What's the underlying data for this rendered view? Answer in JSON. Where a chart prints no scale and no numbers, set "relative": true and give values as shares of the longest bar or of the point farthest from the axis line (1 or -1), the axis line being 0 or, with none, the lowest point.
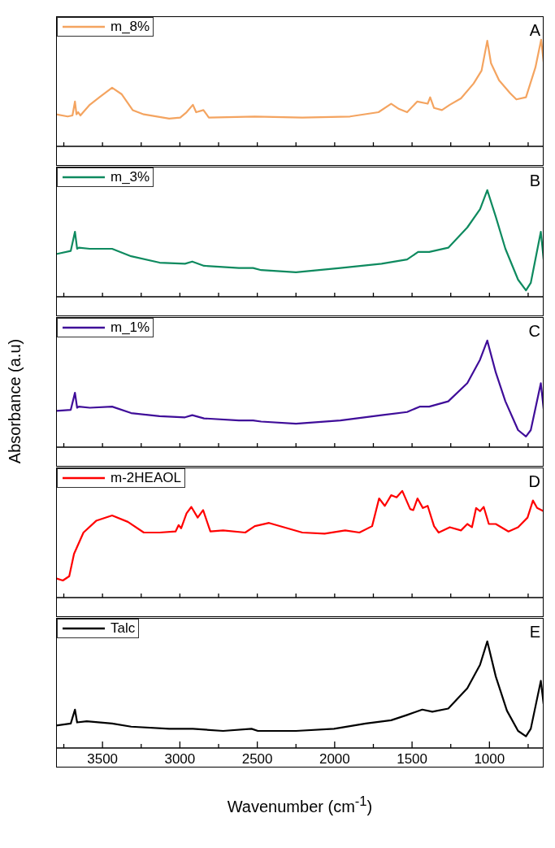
{
  "chart_data": [
    {
      "type": "line",
      "relative": true,
      "xlim": [
        3800,
        650
      ],
      "xticks": [
        {
          "value": 3750,
          "label": null
        },
        {
          "value": 3500,
          "label": null
        },
        {
          "value": 3250,
          "label": null
        },
        {
          "value": 3000,
          "label": null
        },
        {
          "value": 2750,
          "label": null
        },
        {
          "value": 2500,
          "label": null
        },
        {
          "value": 2250,
          "label": null
        },
        {
          "value": 2000,
          "label": null
        },
        {
          "value": 1750,
          "label": null
        },
        {
          "value": 1500,
          "label": null
        },
        {
          "value": 1250,
          "label": null
        },
        {
          "value": 1000,
          "label": null
        },
        {
          "value": 750,
          "label": null
        }
      ],
      "tick_labels": false,
      "legend": "top left",
      "annotations": [
        "A"
      ],
      "series": [
        {
          "name": "m_8%",
          "color": "#f4a460",
          "x": [
            3800,
            3725,
            3694,
            3678,
            3668,
            3657,
            3643,
            3582,
            3520,
            3438,
            3377,
            3305,
            3233,
            3069,
            2998,
            2957,
            2916,
            2895,
            2848,
            2813,
            2516,
            2209,
            1901,
            1717,
            1635,
            1584,
            1532,
            1467,
            1399,
            1383,
            1358,
            1307,
            1256,
            1184,
            1102,
            1051,
            1014,
            990,
            938,
            867,
            826,
            764,
            703,
            666,
            650
          ],
          "values": [
            0.3,
            0.28,
            0.29,
            0.42,
            0.3,
            0.32,
            0.29,
            0.39,
            0.46,
            0.55,
            0.49,
            0.34,
            0.3,
            0.26,
            0.27,
            0.32,
            0.39,
            0.32,
            0.34,
            0.27,
            0.28,
            0.27,
            0.28,
            0.32,
            0.4,
            0.35,
            0.32,
            0.42,
            0.4,
            0.46,
            0.36,
            0.34,
            0.39,
            0.45,
            0.59,
            0.71,
            0.99,
            0.78,
            0.62,
            0.5,
            0.44,
            0.46,
            0.74,
            1,
            0.79
          ]
        }
      ]
    },
    {
      "type": "line",
      "relative": true,
      "xlim": [
        3800,
        650
      ],
      "xticks": [
        {
          "value": 3750,
          "label": null
        },
        {
          "value": 3500,
          "label": null
        },
        {
          "value": 3250,
          "label": null
        },
        {
          "value": 3000,
          "label": null
        },
        {
          "value": 2750,
          "label": null
        },
        {
          "value": 2500,
          "label": null
        },
        {
          "value": 2250,
          "label": null
        },
        {
          "value": 2000,
          "label": null
        },
        {
          "value": 1750,
          "label": null
        },
        {
          "value": 1500,
          "label": null
        },
        {
          "value": 1250,
          "label": null
        },
        {
          "value": 1000,
          "label": null
        },
        {
          "value": 750,
          "label": null
        }
      ],
      "tick_labels": false,
      "legend": "top left",
      "annotations": [
        "B"
      ],
      "series": [
        {
          "name": "m_3%",
          "color": "#0e8a5f",
          "x": [
            3800,
            3705,
            3678,
            3664,
            3653,
            3582,
            3438,
            3315,
            3131,
            2967,
            2920,
            2844,
            2619,
            2527,
            2475,
            2250,
            1963,
            1697,
            1532,
            1461,
            1389,
            1266,
            1143,
            1061,
            1014,
            959,
            897,
            815,
            764,
            733,
            668,
            650
          ],
          "values": [
            0.4,
            0.43,
            0.61,
            0.45,
            0.46,
            0.45,
            0.45,
            0.38,
            0.32,
            0.31,
            0.33,
            0.29,
            0.27,
            0.27,
            0.25,
            0.23,
            0.27,
            0.31,
            0.35,
            0.42,
            0.42,
            0.46,
            0.65,
            0.82,
            1,
            0.75,
            0.45,
            0.16,
            0.06,
            0.13,
            0.61,
            0.35
          ]
        }
      ]
    },
    {
      "type": "line",
      "relative": true,
      "xlim": [
        3800,
        650
      ],
      "xticks": [
        {
          "value": 3750,
          "label": null
        },
        {
          "value": 3500,
          "label": null
        },
        {
          "value": 3250,
          "label": null
        },
        {
          "value": 3000,
          "label": null
        },
        {
          "value": 2750,
          "label": null
        },
        {
          "value": 2500,
          "label": null
        },
        {
          "value": 2250,
          "label": null
        },
        {
          "value": 2000,
          "label": null
        },
        {
          "value": 1750,
          "label": null
        },
        {
          "value": 1500,
          "label": null
        },
        {
          "value": 1250,
          "label": null
        },
        {
          "value": 1000,
          "label": null
        },
        {
          "value": 750,
          "label": null
        }
      ],
      "tick_labels": false,
      "legend": "top left",
      "annotations": [
        "C"
      ],
      "ylabel": "Absorbance (a.u)",
      "series": [
        {
          "name": "m_1%",
          "color": "#3f0d99",
          "x": [
            3800,
            3705,
            3678,
            3664,
            3653,
            3582,
            3438,
            3315,
            3131,
            2967,
            2920,
            2844,
            2619,
            2527,
            2475,
            2250,
            1963,
            1697,
            1532,
            1451,
            1389,
            1266,
            1143,
            1061,
            1014,
            959,
            897,
            815,
            764,
            733,
            668,
            650
          ],
          "values": [
            0.34,
            0.35,
            0.51,
            0.37,
            0.38,
            0.37,
            0.38,
            0.32,
            0.29,
            0.28,
            0.3,
            0.27,
            0.25,
            0.25,
            0.24,
            0.22,
            0.25,
            0.3,
            0.33,
            0.38,
            0.38,
            0.43,
            0.6,
            0.82,
            1,
            0.7,
            0.43,
            0.16,
            0.1,
            0.16,
            0.6,
            0.36
          ]
        }
      ]
    },
    {
      "type": "line",
      "relative": true,
      "xlim": [
        3800,
        650
      ],
      "xticks": [
        {
          "value": 3750,
          "label": null
        },
        {
          "value": 3500,
          "label": null
        },
        {
          "value": 3250,
          "label": null
        },
        {
          "value": 3000,
          "label": null
        },
        {
          "value": 2750,
          "label": null
        },
        {
          "value": 2500,
          "label": null
        },
        {
          "value": 2250,
          "label": null
        },
        {
          "value": 2000,
          "label": null
        },
        {
          "value": 1750,
          "label": null
        },
        {
          "value": 1500,
          "label": null
        },
        {
          "value": 1250,
          "label": null
        },
        {
          "value": 1000,
          "label": null
        },
        {
          "value": 750,
          "label": null
        }
      ],
      "tick_labels": false,
      "legend": "top left",
      "annotations": [
        "D"
      ],
      "series": [
        {
          "name": "m-2HEAOL",
          "color": "#ff0000",
          "x": [
            3800,
            3756,
            3715,
            3684,
            3623,
            3541,
            3438,
            3336,
            3233,
            3131,
            3028,
            3008,
            2992,
            2957,
            2926,
            2885,
            2850,
            2803,
            2721,
            2578,
            2516,
            2424,
            2209,
            2065,
            1932,
            1840,
            1758,
            1713,
            1676,
            1635,
            1600,
            1563,
            1512,
            1492,
            1465,
            1430,
            1399,
            1358,
            1328,
            1256,
            1184,
            1143,
            1113,
            1086,
            1061,
            1037,
            1004,
            959,
            877,
            815,
            754,
            719,
            692,
            650
          ],
          "values": [
            0.18,
            0.16,
            0.2,
            0.41,
            0.61,
            0.72,
            0.77,
            0.71,
            0.61,
            0.61,
            0.62,
            0.68,
            0.65,
            0.79,
            0.85,
            0.75,
            0.82,
            0.62,
            0.63,
            0.61,
            0.67,
            0.7,
            0.61,
            0.6,
            0.63,
            0.61,
            0.67,
            0.93,
            0.86,
            0.96,
            0.94,
            1,
            0.83,
            0.82,
            0.93,
            0.84,
            0.86,
            0.67,
            0.61,
            0.66,
            0.63,
            0.69,
            0.66,
            0.84,
            0.81,
            0.85,
            0.69,
            0.69,
            0.62,
            0.66,
            0.75,
            0.91,
            0.84,
            0.81
          ]
        }
      ]
    },
    {
      "type": "line",
      "relative": true,
      "xlim": [
        3800,
        650
      ],
      "xticks": [
        {
          "value": 3750,
          "label": null
        },
        3500,
        {
          "value": 3250,
          "label": null
        },
        3000,
        {
          "value": 2750,
          "label": null
        },
        2500,
        {
          "value": 2250,
          "label": null
        },
        2000,
        {
          "value": 1750,
          "label": null
        },
        1500,
        {
          "value": 1250,
          "label": null
        },
        1000,
        {
          "value": 750,
          "label": null
        }
      ],
      "tick_labels": "x",
      "legend": "top left",
      "annotations": [
        "E"
      ],
      "xlabel": "Wavenumber (cm$^{-1}$)",
      "series": [
        {
          "name": "Talc",
          "color": "#000000",
          "x": [
            3800,
            3705,
            3678,
            3664,
            3602,
            3438,
            3315,
            3069,
            2916,
            2721,
            2537,
            2496,
            2250,
            2004,
            1799,
            1635,
            1532,
            1434,
            1369,
            1266,
            1143,
            1061,
            1014,
            959,
            887,
            815,
            764,
            733,
            668,
            650
          ],
          "values": [
            0.21,
            0.23,
            0.36,
            0.24,
            0.25,
            0.23,
            0.2,
            0.18,
            0.18,
            0.16,
            0.18,
            0.16,
            0.16,
            0.18,
            0.23,
            0.26,
            0.31,
            0.36,
            0.34,
            0.37,
            0.56,
            0.78,
            1,
            0.67,
            0.35,
            0.16,
            0.11,
            0.18,
            0.63,
            0.41
          ]
        }
      ]
    }
  ]
}
